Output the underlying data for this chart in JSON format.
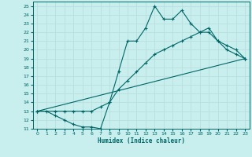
{
  "xlabel": "Humidex (Indice chaleur)",
  "bg_color": "#c8eeee",
  "grid_color": "#b8dede",
  "line_color": "#006666",
  "xlim": [
    -0.5,
    23.5
  ],
  "ylim": [
    11,
    25.5
  ],
  "yticks": [
    11,
    12,
    13,
    14,
    15,
    16,
    17,
    18,
    19,
    20,
    21,
    22,
    23,
    24,
    25
  ],
  "xticks": [
    0,
    1,
    2,
    3,
    4,
    5,
    6,
    7,
    8,
    9,
    10,
    11,
    12,
    13,
    14,
    15,
    16,
    17,
    18,
    19,
    20,
    21,
    22,
    23
  ],
  "line1_x": [
    0,
    1,
    2,
    3,
    4,
    5,
    6,
    7,
    8,
    9,
    10,
    11,
    12,
    13,
    14,
    15,
    16,
    17,
    18,
    19,
    20,
    21,
    22,
    23
  ],
  "line1_y": [
    13,
    13,
    12.5,
    12,
    11.5,
    11.2,
    11.2,
    11,
    14,
    17.5,
    21,
    21,
    22.5,
    25,
    23.5,
    23.5,
    24.5,
    23,
    22,
    22,
    21,
    20,
    19.5,
    19
  ],
  "line2_x": [
    0,
    2,
    3,
    4,
    5,
    6,
    7,
    8,
    9,
    10,
    11,
    12,
    13,
    14,
    15,
    16,
    17,
    18,
    19,
    20,
    21,
    22,
    23
  ],
  "line2_y": [
    13,
    13,
    13,
    13,
    13,
    13,
    13.5,
    14,
    15.5,
    16.5,
    17.5,
    18.5,
    19.5,
    20,
    20.5,
    21,
    21.5,
    22,
    22.5,
    21,
    20.5,
    20,
    19
  ],
  "line3_x": [
    0,
    23
  ],
  "line3_y": [
    13,
    19
  ]
}
